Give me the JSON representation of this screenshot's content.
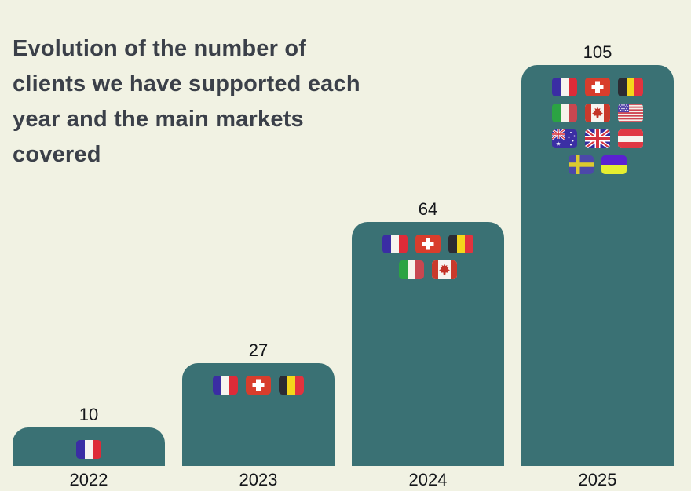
{
  "colors": {
    "background": "#f1f2e3",
    "bar": "#3a7174",
    "title_text": "#3b4049",
    "label_text": "#14161a"
  },
  "title_lines": [
    "Evolution of the number of",
    "clients we have supported each",
    "year and the main markets",
    "covered"
  ],
  "chart_data": {
    "type": "bar",
    "title": "Evolution of the number of clients we have supported each year and the main markets covered",
    "categories": [
      "2022",
      "2023",
      "2024",
      "2025"
    ],
    "values": [
      10,
      27,
      64,
      105
    ],
    "value_labels": [
      "10",
      "27",
      "64",
      "105"
    ],
    "xlabel": "",
    "ylabel": "",
    "ylim": [
      0,
      105
    ],
    "grid": false,
    "legend": false,
    "bar_color": "#3a7174",
    "markets": [
      [
        "France"
      ],
      [
        "France",
        "Switzerland",
        "Belgium"
      ],
      [
        "France",
        "Switzerland",
        "Belgium",
        "Italy",
        "Canada"
      ],
      [
        "France",
        "Switzerland",
        "Belgium",
        "Italy",
        "Canada",
        "USA",
        "Australia",
        "United Kingdom",
        "Austria",
        "Sweden",
        "Ukraine"
      ]
    ]
  }
}
